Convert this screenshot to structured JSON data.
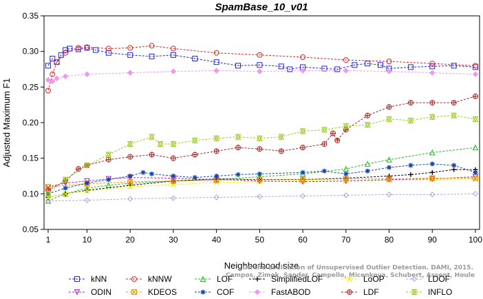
{
  "chart_data": {
    "type": "line",
    "title": "SpamBase_10_v01",
    "xlabel": "Neighborhood size",
    "ylabel": "Adjusted Maximum F1",
    "xlim": [
      1,
      100
    ],
    "ylim": [
      0.05,
      0.35
    ],
    "x_ticks": [
      1,
      10,
      20,
      30,
      40,
      50,
      60,
      70,
      80,
      90,
      100
    ],
    "y_ticks": [
      0.05,
      0.1,
      0.15,
      0.2,
      0.25,
      0.3,
      0.35
    ],
    "y_tick_labels": [
      "0.05",
      "0.10",
      "0.15",
      "0.20",
      "0.25",
      "0.30",
      "0.35"
    ],
    "grid": false,
    "legend_position": "bottom",
    "watermark": "Campos, Zimek, Sander, Campello, Micenkova, Schubert, Assent, Houle: On the Evaluation of Unsupervised Outlier Detection. DAMI, 2015.",
    "watermark_lines": [
      "On the Evaluation of Unsupervised Outlier Detection. DAMI, 2015.",
      "Campos, Zimek, Sander, Campello, Micenkova, Schubert, Assent, Houle"
    ],
    "series": [
      {
        "name": "kNN",
        "color": "#2222dd",
        "marker": "square",
        "points": [
          [
            1,
            0.28
          ],
          [
            2,
            0.29
          ],
          [
            3,
            0.285
          ],
          [
            4,
            0.295
          ],
          [
            5,
            0.302
          ],
          [
            6,
            0.304
          ],
          [
            8,
            0.303
          ],
          [
            10,
            0.305
          ],
          [
            12,
            0.302
          ],
          [
            15,
            0.298
          ],
          [
            20,
            0.295
          ],
          [
            25,
            0.293
          ],
          [
            30,
            0.295
          ],
          [
            35,
            0.29
          ],
          [
            40,
            0.285
          ],
          [
            45,
            0.28
          ],
          [
            50,
            0.281
          ],
          [
            55,
            0.279
          ],
          [
            57,
            0.275
          ],
          [
            60,
            0.278
          ],
          [
            65,
            0.276
          ],
          [
            68,
            0.275
          ],
          [
            72,
            0.281
          ],
          [
            75,
            0.283
          ],
          [
            78,
            0.281
          ],
          [
            80,
            0.276
          ],
          [
            85,
            0.278
          ],
          [
            90,
            0.279
          ],
          [
            95,
            0.28
          ],
          [
            100,
            0.278
          ]
        ]
      },
      {
        "name": "kNNW",
        "color": "#dd2222",
        "marker": "circle",
        "points": [
          [
            1,
            0.245
          ],
          [
            2,
            0.268
          ],
          [
            3,
            0.285
          ],
          [
            5,
            0.298
          ],
          [
            8,
            0.305
          ],
          [
            10,
            0.306
          ],
          [
            15,
            0.304
          ],
          [
            20,
            0.305
          ],
          [
            25,
            0.308
          ],
          [
            30,
            0.304
          ],
          [
            40,
            0.298
          ],
          [
            50,
            0.295
          ],
          [
            60,
            0.292
          ],
          [
            70,
            0.288
          ],
          [
            80,
            0.286
          ],
          [
            90,
            0.283
          ],
          [
            100,
            0.28
          ]
        ]
      },
      {
        "name": "LOF",
        "color": "#22bb22",
        "marker": "triangle-up",
        "points": [
          [
            1,
            0.09
          ],
          [
            5,
            0.1
          ],
          [
            10,
            0.108
          ],
          [
            15,
            0.112
          ],
          [
            20,
            0.115
          ],
          [
            30,
            0.118
          ],
          [
            40,
            0.12
          ],
          [
            50,
            0.124
          ],
          [
            60,
            0.128
          ],
          [
            70,
            0.135
          ],
          [
            75,
            0.142
          ],
          [
            80,
            0.148
          ],
          [
            90,
            0.158
          ],
          [
            100,
            0.165
          ]
        ]
      },
      {
        "name": "SimplifiedLOF",
        "color": "#000000",
        "marker": "plus",
        "points": [
          [
            1,
            0.095
          ],
          [
            5,
            0.1
          ],
          [
            10,
            0.105
          ],
          [
            20,
            0.112
          ],
          [
            30,
            0.118
          ],
          [
            40,
            0.121
          ],
          [
            50,
            0.12
          ],
          [
            60,
            0.12
          ],
          [
            70,
            0.122
          ],
          [
            80,
            0.125
          ],
          [
            85,
            0.127
          ],
          [
            90,
            0.13
          ],
          [
            95,
            0.134
          ],
          [
            100,
            0.134
          ]
        ]
      },
      {
        "name": "LoOP",
        "color": "#eeee00",
        "marker": "x",
        "points": [
          [
            1,
            0.095
          ],
          [
            5,
            0.1
          ],
          [
            10,
            0.104
          ],
          [
            20,
            0.11
          ],
          [
            30,
            0.113
          ],
          [
            40,
            0.116
          ],
          [
            50,
            0.117
          ],
          [
            60,
            0.118
          ],
          [
            70,
            0.118
          ],
          [
            80,
            0.119
          ],
          [
            90,
            0.12
          ],
          [
            100,
            0.121
          ]
        ]
      },
      {
        "name": "LDOF",
        "color": "#aaaadd",
        "marker": "diamond",
        "points": [
          [
            1,
            0.09
          ],
          [
            10,
            0.091
          ],
          [
            20,
            0.093
          ],
          [
            30,
            0.094
          ],
          [
            40,
            0.095
          ],
          [
            50,
            0.096
          ],
          [
            60,
            0.097
          ],
          [
            70,
            0.098
          ],
          [
            80,
            0.099
          ],
          [
            90,
            0.099
          ],
          [
            100,
            0.1
          ]
        ]
      },
      {
        "name": "ODIN",
        "color": "#aa22cc",
        "marker": "triangle-down",
        "points": [
          [
            1,
            0.11
          ],
          [
            5,
            0.115
          ],
          [
            10,
            0.118
          ],
          [
            15,
            0.121
          ],
          [
            20,
            0.123
          ],
          [
            30,
            0.122
          ],
          [
            40,
            0.12
          ],
          [
            50,
            0.118
          ],
          [
            60,
            0.117
          ],
          [
            70,
            0.118
          ],
          [
            80,
            0.12
          ],
          [
            90,
            0.121
          ],
          [
            100,
            0.124
          ]
        ]
      },
      {
        "name": "KDEOS",
        "color": "#ee9900",
        "marker": "square-x",
        "points": [
          [
            1,
            0.11
          ],
          [
            10,
            0.114
          ],
          [
            20,
            0.117
          ],
          [
            30,
            0.118
          ],
          [
            40,
            0.119
          ],
          [
            50,
            0.12
          ],
          [
            60,
            0.12
          ],
          [
            70,
            0.121
          ],
          [
            80,
            0.121
          ],
          [
            90,
            0.122
          ],
          [
            100,
            0.122
          ]
        ]
      },
      {
        "name": "COF",
        "color": "#1144aa",
        "marker": "star",
        "points": [
          [
            1,
            0.1
          ],
          [
            5,
            0.108
          ],
          [
            10,
            0.115
          ],
          [
            15,
            0.12
          ],
          [
            20,
            0.125
          ],
          [
            23,
            0.13
          ],
          [
            25,
            0.128
          ],
          [
            30,
            0.125
          ],
          [
            35,
            0.123
          ],
          [
            40,
            0.125
          ],
          [
            45,
            0.127
          ],
          [
            50,
            0.128
          ],
          [
            60,
            0.13
          ],
          [
            65,
            0.132
          ],
          [
            70,
            0.128
          ],
          [
            75,
            0.132
          ],
          [
            80,
            0.137
          ],
          [
            85,
            0.14
          ],
          [
            90,
            0.142
          ],
          [
            95,
            0.14
          ],
          [
            100,
            0.13
          ]
        ]
      },
      {
        "name": "FastABOD",
        "color": "#ee99ee",
        "marker": "diamond-filled",
        "points": [
          [
            1,
            0.26
          ],
          [
            2,
            0.258
          ],
          [
            3,
            0.262
          ],
          [
            5,
            0.265
          ],
          [
            10,
            0.268
          ],
          [
            20,
            0.27
          ],
          [
            30,
            0.272
          ],
          [
            40,
            0.273
          ],
          [
            50,
            0.272
          ],
          [
            60,
            0.273
          ],
          [
            70,
            0.273
          ],
          [
            80,
            0.272
          ],
          [
            90,
            0.27
          ],
          [
            100,
            0.268
          ]
        ]
      },
      {
        "name": "LDF",
        "color": "#aa2222",
        "marker": "circle-plus",
        "points": [
          [
            1,
            0.105
          ],
          [
            5,
            0.118
          ],
          [
            8,
            0.135
          ],
          [
            10,
            0.14
          ],
          [
            15,
            0.148
          ],
          [
            20,
            0.152
          ],
          [
            25,
            0.155
          ],
          [
            30,
            0.15
          ],
          [
            35,
            0.155
          ],
          [
            40,
            0.16
          ],
          [
            45,
            0.165
          ],
          [
            50,
            0.163
          ],
          [
            55,
            0.16
          ],
          [
            60,
            0.165
          ],
          [
            65,
            0.17
          ],
          [
            67,
            0.185
          ],
          [
            68,
            0.175
          ],
          [
            70,
            0.19
          ],
          [
            75,
            0.21
          ],
          [
            80,
            0.222
          ],
          [
            85,
            0.228
          ],
          [
            90,
            0.228
          ],
          [
            95,
            0.228
          ],
          [
            100,
            0.237
          ]
        ]
      },
      {
        "name": "INFLO",
        "color": "#99cc22",
        "marker": "hourglass",
        "points": [
          [
            1,
            0.1
          ],
          [
            5,
            0.12
          ],
          [
            10,
            0.14
          ],
          [
            15,
            0.155
          ],
          [
            20,
            0.17
          ],
          [
            25,
            0.18
          ],
          [
            27,
            0.17
          ],
          [
            30,
            0.17
          ],
          [
            35,
            0.175
          ],
          [
            40,
            0.178
          ],
          [
            45,
            0.18
          ],
          [
            50,
            0.178
          ],
          [
            55,
            0.18
          ],
          [
            60,
            0.188
          ],
          [
            65,
            0.19
          ],
          [
            70,
            0.195
          ],
          [
            75,
            0.197
          ],
          [
            80,
            0.205
          ],
          [
            85,
            0.203
          ],
          [
            90,
            0.208
          ],
          [
            95,
            0.21
          ],
          [
            100,
            0.205
          ]
        ]
      }
    ]
  }
}
